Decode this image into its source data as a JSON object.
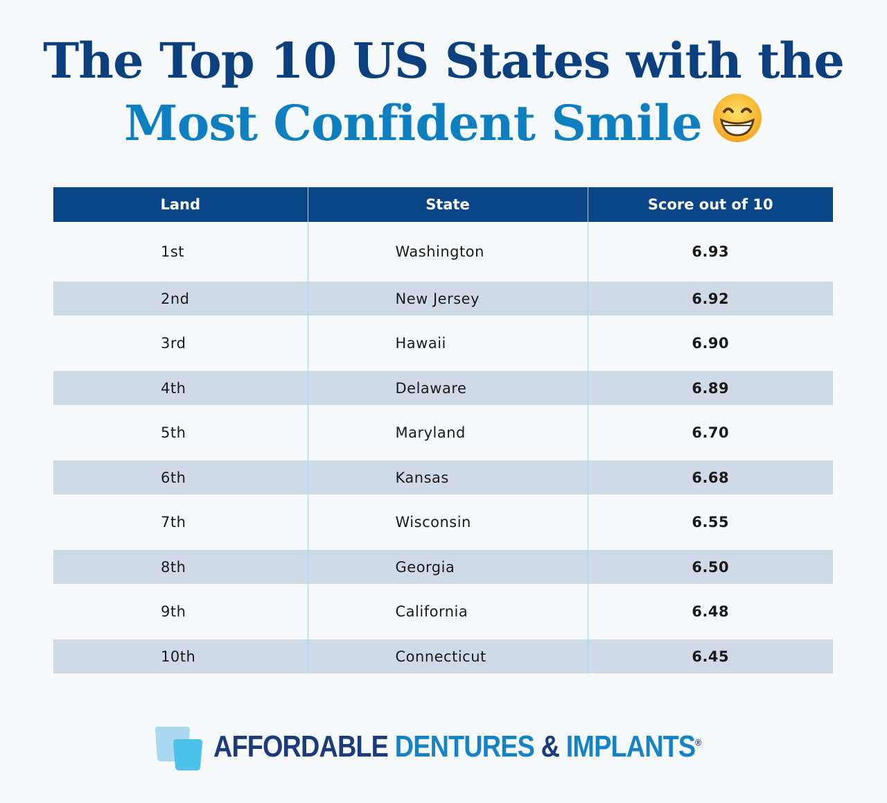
{
  "title": {
    "line1": "The Top 10 US States with the",
    "line2": "Most Confident Smile",
    "emoji": "grinning-face-icon"
  },
  "table": {
    "headers": [
      "Land",
      "State",
      "Score out of 10"
    ],
    "rows": [
      [
        "1st",
        "Washington",
        "6.93"
      ],
      [
        "2nd",
        "New Jersey",
        "6.92"
      ],
      [
        "3rd",
        "Hawaii",
        "6.90"
      ],
      [
        "4th",
        "Delaware",
        "6.89"
      ],
      [
        "5th",
        "Maryland",
        "6.70"
      ],
      [
        "6th",
        "Kansas",
        "6.68"
      ],
      [
        "7th",
        "Wisconsin",
        "6.55"
      ],
      [
        "8th",
        "Georgia",
        "6.50"
      ],
      [
        "9th",
        "California",
        "6.48"
      ],
      [
        "10th",
        "Connecticut",
        "6.45"
      ]
    ]
  },
  "logo": {
    "part1": "AFFORDABLE",
    "part2": "DENTURES",
    "amp": "&",
    "part3": "IMPLANTS",
    "reg": "®"
  },
  "colors": {
    "header": "#0a4587",
    "band": "#cfd9e7",
    "title_dark": "#0b3f7e",
    "title_light": "#0e7fc0"
  }
}
